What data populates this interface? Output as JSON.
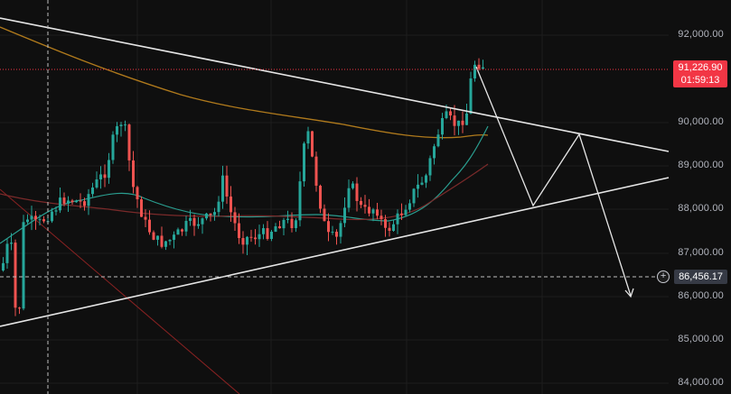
{
  "price_axis": {
    "labels": [
      "92,000.00",
      "90,000.00",
      "89,000.00",
      "88,000.00",
      "87,000.00",
      "86,000.00",
      "85,000.00",
      "84,000.00"
    ]
  },
  "current_price": {
    "value": "91,226.90",
    "countdown": "01:59:13",
    "color": "#f23645"
  },
  "crosshair": {
    "value": "86,456.17",
    "plus_icon": "plus-circle-icon"
  },
  "colors": {
    "background": "#0f0f0f",
    "up_candle": "#26a69a",
    "down_candle": "#ef5350",
    "trendline": "#e6e6e6",
    "ma_slow": "#b07a1c",
    "ma_fast": "#2a9d8f",
    "ma_mid": "#7a2a2a"
  }
}
